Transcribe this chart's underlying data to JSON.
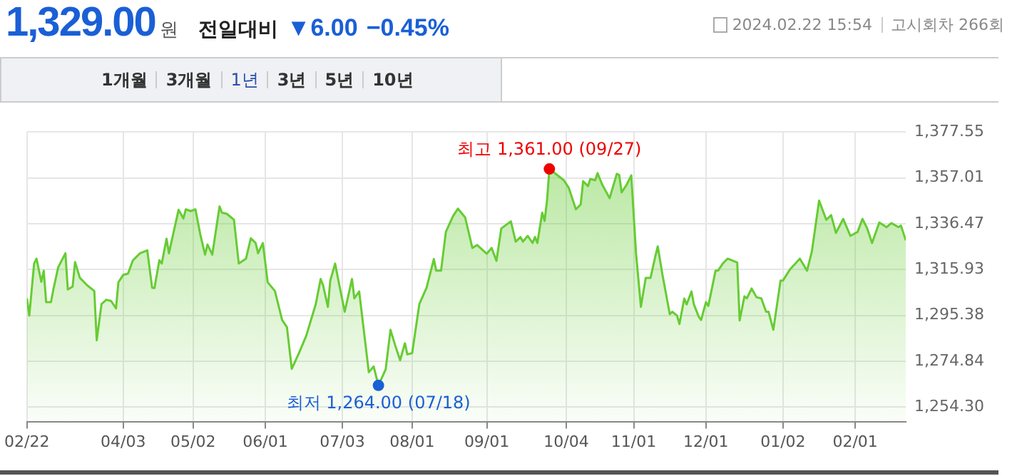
{
  "chart_data": {
    "type": "area",
    "title": "1,329.00",
    "x": [
      "2023-02-22",
      "2023-02-23",
      "2023-02-25",
      "2023-02-26",
      "2023-02-28",
      "2023-03-01",
      "2023-03-02",
      "2023-03-04",
      "2023-03-05",
      "2023-03-07",
      "2023-03-10",
      "2023-03-11",
      "2023-03-13",
      "2023-03-14",
      "2023-03-16",
      "2023-03-19",
      "2023-03-22",
      "2023-03-23",
      "2023-03-25",
      "2023-03-27",
      "2023-03-29",
      "2023-03-31",
      "2023-04-01",
      "2023-04-03",
      "2023-04-05",
      "2023-04-07",
      "2023-04-10",
      "2023-04-13",
      "2023-04-15",
      "2023-04-16",
      "2023-04-18",
      "2023-04-19",
      "2023-04-21",
      "2023-04-22",
      "2023-04-24",
      "2023-04-26",
      "2023-04-28",
      "2023-04-29",
      "2023-05-01",
      "2023-05-03",
      "2023-05-05",
      "2023-05-07",
      "2023-05-08",
      "2023-05-10",
      "2023-05-13",
      "2023-05-14",
      "2023-05-16",
      "2023-05-19",
      "2023-05-21",
      "2023-05-24",
      "2023-05-26",
      "2023-05-28",
      "2023-05-29",
      "2023-05-31",
      "2023-06-02",
      "2023-06-05",
      "2023-06-08",
      "2023-06-10",
      "2023-06-12",
      "2023-06-15",
      "2023-06-18",
      "2023-06-22",
      "2023-06-24",
      "2023-06-25",
      "2023-06-27",
      "2023-06-28",
      "2023-06-30",
      "2023-07-02",
      "2023-07-04",
      "2023-07-07",
      "2023-07-08",
      "2023-07-10",
      "2023-07-14",
      "2023-07-16",
      "2023-07-18",
      "2023-07-21",
      "2023-07-23",
      "2023-07-25",
      "2023-07-27",
      "2023-07-29",
      "2023-07-30",
      "2023-08-01",
      "2023-08-04",
      "2023-08-07",
      "2023-08-10",
      "2023-08-11",
      "2023-08-13",
      "2023-08-15",
      "2023-08-18",
      "2023-08-20",
      "2023-08-23",
      "2023-08-26",
      "2023-08-28",
      "2023-09-01",
      "2023-09-03",
      "2023-09-05",
      "2023-09-07",
      "2023-09-11",
      "2023-09-13",
      "2023-09-15",
      "2023-09-16",
      "2023-09-18",
      "2023-09-20",
      "2023-09-21",
      "2023-09-22",
      "2023-09-24",
      "2023-09-25",
      "2023-09-26",
      "2023-09-27",
      "2023-10-03",
      "2023-10-05",
      "2023-10-08",
      "2023-10-10",
      "2023-10-11",
      "2023-10-13",
      "2023-10-14",
      "2023-10-16",
      "2023-10-17",
      "2023-10-19",
      "2023-10-22",
      "2023-10-25",
      "2023-10-26",
      "2023-10-27",
      "2023-10-29",
      "2023-10-31",
      "2023-11-02",
      "2023-11-04",
      "2023-11-06",
      "2023-11-08",
      "2023-11-10",
      "2023-11-11",
      "2023-11-13",
      "2023-11-16",
      "2023-11-17",
      "2023-11-19",
      "2023-11-20",
      "2023-11-22",
      "2023-11-23",
      "2023-11-25",
      "2023-11-26",
      "2023-11-28",
      "2023-11-29",
      "2023-12-01",
      "2023-12-02",
      "2023-12-05",
      "2023-12-06",
      "2023-12-08",
      "2023-12-10",
      "2023-12-14",
      "2023-12-15",
      "2023-12-17",
      "2023-12-18",
      "2023-12-20",
      "2023-12-22",
      "2023-12-24",
      "2023-12-26",
      "2023-12-27",
      "2023-12-29",
      "2024-01-01",
      "2024-01-02",
      "2024-01-05",
      "2024-01-09",
      "2024-01-12",
      "2024-01-14",
      "2024-01-17",
      "2024-01-20",
      "2024-01-22",
      "2024-01-24",
      "2024-01-27",
      "2024-01-30",
      "2024-02-02",
      "2024-02-04",
      "2024-02-06",
      "2024-02-08",
      "2024-02-11",
      "2024-02-14",
      "2024-02-16",
      "2024-02-19",
      "2024-02-20",
      "2024-02-22"
    ],
    "series": [
      {
        "color": "#66cc33",
        "values": [
          1303.0,
          1295.3,
          1318.6,
          1320.8,
          1310.4,
          1315.4,
          1301.3,
          1301.3,
          1307.0,
          1316.9,
          1323.2,
          1307.0,
          1308.3,
          1319.3,
          1312.2,
          1308.9,
          1306.3,
          1284.2,
          1300.5,
          1302.4,
          1301.8,
          1298.5,
          1310.2,
          1313.5,
          1314.1,
          1320.0,
          1323.2,
          1324.5,
          1307.8,
          1307.6,
          1320.1,
          1318.6,
          1329.7,
          1323.2,
          1333.0,
          1342.7,
          1338.8,
          1342.9,
          1342.1,
          1342.9,
          1331.7,
          1322.6,
          1327.1,
          1322.6,
          1344.2,
          1341.4,
          1340.9,
          1338.2,
          1318.6,
          1320.8,
          1329.9,
          1327.8,
          1323.2,
          1327.8,
          1310.2,
          1306.3,
          1293.3,
          1290.1,
          1271.4,
          1278.5,
          1286.2,
          1300.5,
          1311.7,
          1308.9,
          1299.2,
          1311.0,
          1318.6,
          1307.6,
          1297.0,
          1311.7,
          1303.0,
          1306.1,
          1269.9,
          1272.5,
          1264.0,
          1271.2,
          1288.9,
          1281.8,
          1275.3,
          1282.9,
          1277.9,
          1278.5,
          1300.5,
          1307.8,
          1320.6,
          1315.4,
          1315.4,
          1332.8,
          1339.9,
          1343.2,
          1339.3,
          1325.6,
          1326.9,
          1323.0,
          1325.6,
          1319.8,
          1334.3,
          1337.5,
          1328.4,
          1330.5,
          1328.4,
          1331.0,
          1327.8,
          1330.5,
          1327.8,
          1341.4,
          1337.7,
          1346.8,
          1361.0,
          1355.9,
          1352.6,
          1342.9,
          1345.1,
          1355.5,
          1353.3,
          1356.5,
          1355.9,
          1359.1,
          1353.8,
          1347.9,
          1358.8,
          1358.3,
          1350.5,
          1353.8,
          1358.1,
          1323.0,
          1299.2,
          1312.2,
          1312.2,
          1321.9,
          1326.3,
          1313.3,
          1295.9,
          1297.0,
          1295.3,
          1291.5,
          1302.9,
          1300.3,
          1306.1,
          1300.3,
          1294.8,
          1293.3,
          1301.3,
          1299.6,
          1315.4,
          1315.4,
          1318.6,
          1320.8,
          1319.1,
          1293.1,
          1303.9,
          1303.0,
          1307.4,
          1303.5,
          1303.0,
          1297.0,
          1297.0,
          1288.9,
          1311.0,
          1311.0,
          1316.1,
          1320.8,
          1315.4,
          1324.0,
          1346.8,
          1338.2,
          1340.3,
          1332.3,
          1338.6,
          1331.0,
          1332.8,
          1338.6,
          1334.3,
          1327.8,
          1337.0,
          1334.9,
          1336.7,
          1334.9,
          1335.6,
          1329.0
        ]
      }
    ],
    "xlim": [
      "2023-02-22",
      "2024-02-22"
    ],
    "xticks": [
      {
        "value": "2023-02-22",
        "label": "02/22"
      },
      {
        "value": "2023-04-03",
        "label": "04/03"
      },
      {
        "value": "2023-05-02",
        "label": "05/02"
      },
      {
        "value": "2023-06-01",
        "label": "06/01"
      },
      {
        "value": "2023-07-03",
        "label": "07/03"
      },
      {
        "value": "2023-08-01",
        "label": "08/01"
      },
      {
        "value": "2023-09-01",
        "label": "09/01"
      },
      {
        "value": "2023-10-04",
        "label": "10/04"
      },
      {
        "value": "2023-11-01",
        "label": "11/01"
      },
      {
        "value": "2023-12-01",
        "label": "12/01"
      },
      {
        "value": "2024-01-02",
        "label": "01/02"
      },
      {
        "value": "2024-02-01",
        "label": "02/01"
      }
    ],
    "ylim": [
      1247.8,
      1377.55
    ],
    "yticks": [
      {
        "value": 1254.3,
        "label": "1,254.30"
      },
      {
        "value": 1274.84,
        "label": "1,274.84"
      },
      {
        "value": 1295.38,
        "label": "1,295.38"
      },
      {
        "value": 1315.93,
        "label": "1,315.93"
      },
      {
        "value": 1336.47,
        "label": "1,336.47"
      },
      {
        "value": 1357.01,
        "label": "1,357.01"
      },
      {
        "value": 1377.55,
        "label": "1,377.55"
      }
    ],
    "grid": true,
    "marker": "none",
    "annotations": [
      "원",
      "전일대비",
      "▼6.00",
      "−0.45%",
      "2024.02.22 15:54",
      "고시회차 266회",
      "1개월",
      "3개월",
      "1년",
      "3년",
      "5년",
      "10년",
      {
        "text": "최고 1,361.00 (09/27)",
        "x": "2023-09-27",
        "y": 1361.0
      },
      {
        "text": "최저 1,264.00 (07/18)",
        "x": "2023-07-18",
        "y": 1264.0
      }
    ]
  }
}
